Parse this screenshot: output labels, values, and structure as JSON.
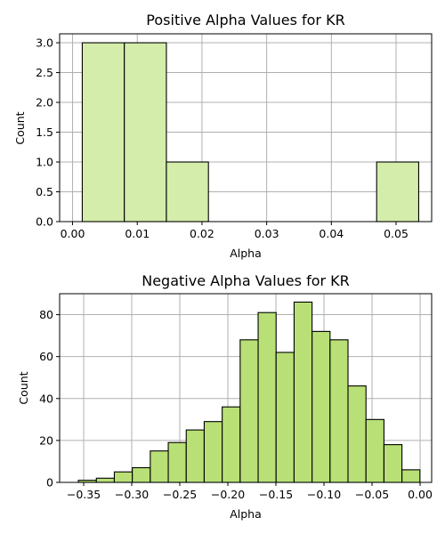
{
  "chart_data": [
    {
      "type": "bar",
      "title": "Positive Alpha Values for KR",
      "xlabel": "Alpha",
      "ylabel": "Count",
      "bar_color": "#d4edaa",
      "edge_color": "#000000",
      "xlim": [
        -0.002,
        0.0555
      ],
      "ylim": [
        0,
        3.15
      ],
      "xticks": [
        0.0,
        0.01,
        0.02,
        0.03,
        0.04,
        0.05
      ],
      "xtick_labels": [
        "0.00",
        "0.01",
        "0.02",
        "0.03",
        "0.04",
        "0.05"
      ],
      "yticks": [
        0.0,
        0.5,
        1.0,
        1.5,
        2.0,
        2.5,
        3.0
      ],
      "ytick_labels": [
        "0.0",
        "0.5",
        "1.0",
        "1.5",
        "2.0",
        "2.5",
        "3.0"
      ],
      "grid": true,
      "bins": [
        {
          "x0": 0.0015,
          "x1": 0.008,
          "count": 3
        },
        {
          "x0": 0.008,
          "x1": 0.0145,
          "count": 3
        },
        {
          "x0": 0.0145,
          "x1": 0.021,
          "count": 1
        },
        {
          "x0": 0.021,
          "x1": 0.0275,
          "count": 0
        },
        {
          "x0": 0.0275,
          "x1": 0.034,
          "count": 0
        },
        {
          "x0": 0.034,
          "x1": 0.0405,
          "count": 0
        },
        {
          "x0": 0.0405,
          "x1": 0.047,
          "count": 0
        },
        {
          "x0": 0.047,
          "x1": 0.0535,
          "count": 1
        }
      ]
    },
    {
      "type": "bar",
      "title": "Negative Alpha Values for KR",
      "xlabel": "Alpha",
      "ylabel": "Count",
      "bar_color": "#b8e076",
      "edge_color": "#000000",
      "xlim": [
        -0.375,
        0.012
      ],
      "ylim": [
        0,
        90
      ],
      "xticks": [
        -0.35,
        -0.3,
        -0.25,
        -0.2,
        -0.15,
        -0.1,
        -0.05,
        0.0
      ],
      "xtick_labels": [
        "−0.35",
        "−0.30",
        "−0.25",
        "−0.20",
        "−0.15",
        "−0.10",
        "−0.05",
        "0.00"
      ],
      "yticks": [
        0,
        20,
        40,
        60,
        80
      ],
      "ytick_labels": [
        "0",
        "20",
        "40",
        "60",
        "80"
      ],
      "grid": true,
      "bins": [
        {
          "x0": -0.3555,
          "x1": -0.3368,
          "count": 1
        },
        {
          "x0": -0.3368,
          "x1": -0.3181,
          "count": 2
        },
        {
          "x0": -0.3181,
          "x1": -0.2994,
          "count": 5
        },
        {
          "x0": -0.2994,
          "x1": -0.2807,
          "count": 7
        },
        {
          "x0": -0.2807,
          "x1": -0.262,
          "count": 15
        },
        {
          "x0": -0.262,
          "x1": -0.2433,
          "count": 19
        },
        {
          "x0": -0.2433,
          "x1": -0.2246,
          "count": 25
        },
        {
          "x0": -0.2246,
          "x1": -0.2059,
          "count": 29
        },
        {
          "x0": -0.2059,
          "x1": -0.1872,
          "count": 36
        },
        {
          "x0": -0.1872,
          "x1": -0.1685,
          "count": 68
        },
        {
          "x0": -0.1685,
          "x1": -0.1498,
          "count": 81
        },
        {
          "x0": -0.1498,
          "x1": -0.1311,
          "count": 62
        },
        {
          "x0": -0.1311,
          "x1": -0.1124,
          "count": 86
        },
        {
          "x0": -0.1124,
          "x1": -0.0937,
          "count": 72
        },
        {
          "x0": -0.0937,
          "x1": -0.075,
          "count": 68
        },
        {
          "x0": -0.075,
          "x1": -0.0563,
          "count": 46
        },
        {
          "x0": -0.0563,
          "x1": -0.0376,
          "count": 30
        },
        {
          "x0": -0.0376,
          "x1": -0.0189,
          "count": 18
        },
        {
          "x0": -0.0189,
          "x1": -0.0002,
          "count": 6
        }
      ]
    }
  ]
}
